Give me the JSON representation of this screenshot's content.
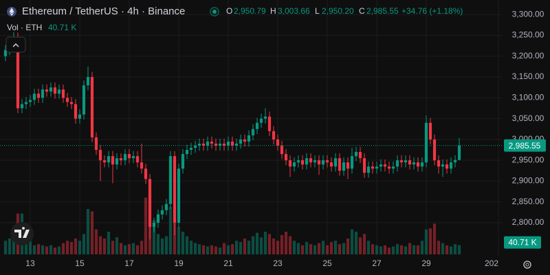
{
  "chart_data": {
    "type": "candlestick",
    "title": "Ethereum / TetherUS · 4h · Binance",
    "legend": {
      "o_label": "O",
      "open": "2,950.79",
      "h_label": "H",
      "high": "3,003.66",
      "l_label": "L",
      "low": "2,950.20",
      "c_label": "C",
      "close": "2,985.55",
      "change": "+34.76 (+1.18%)"
    },
    "up_color": "#089981",
    "down_color": "#f23645",
    "opens": [
      3200,
      3215,
      3235,
      3245,
      3075,
      3085,
      3090,
      3095,
      3110,
      3100,
      3120,
      3115,
      3125,
      3110,
      3120,
      3100,
      3090,
      3085,
      3050,
      3060,
      3130,
      3150,
      3005,
      2975,
      2950,
      2945,
      2960,
      2940,
      2955,
      2950,
      2965,
      2955,
      2960,
      2945,
      2930,
      2905,
      2790,
      2800,
      2820,
      2830,
      2845,
      2960,
      2800,
      2930,
      2965,
      2975,
      2980,
      2985,
      2990,
      2985,
      2995,
      2990,
      2985,
      2990,
      2985,
      2995,
      2985,
      2990,
      3000,
      2995,
      3010,
      3025,
      3040,
      3050,
      3055,
      3020,
      3000,
      2985,
      2965,
      2950,
      2935,
      2945,
      2950,
      2940,
      2955,
      2945,
      2950,
      2940,
      2950,
      2945,
      2935,
      2955,
      2925,
      2945,
      2930,
      2960,
      2970,
      2955,
      2920,
      2935,
      2930,
      2935,
      2940,
      2935,
      2930,
      2935,
      2950,
      2945,
      2950,
      2940,
      2945,
      2935,
      2945,
      3040,
      3000,
      2950,
      2935,
      2940,
      2930,
      2945,
      2950.79
    ],
    "highs": [
      3227,
      3247,
      3258,
      3257,
      3097,
      3102,
      3107,
      3122,
      3122,
      3132,
      3132,
      3137,
      3137,
      3132,
      3132,
      3112,
      3102,
      3097,
      3072,
      3142,
      3175,
      3162,
      3017,
      2987,
      2962,
      2972,
      2972,
      2967,
      2967,
      2977,
      2977,
      2972,
      2972,
      2990,
      2942,
      2917,
      2812,
      2832,
      2842,
      2857,
      2972,
      2972,
      2942,
      2977,
      2987,
      2992,
      2997,
      3002,
      3002,
      3007,
      3007,
      3002,
      3002,
      3002,
      3007,
      3007,
      3002,
      3012,
      3012,
      3022,
      3037,
      3052,
      3062,
      3075,
      3067,
      3032,
      3012,
      2997,
      2977,
      2962,
      2957,
      2962,
      2962,
      2967,
      2967,
      2962,
      2962,
      2962,
      2962,
      2957,
      2967,
      2967,
      2957,
      2957,
      2980,
      2982,
      2982,
      2967,
      2947,
      2947,
      2947,
      2952,
      2952,
      2947,
      2947,
      2962,
      2962,
      2962,
      2962,
      2957,
      2957,
      2957,
      3058,
      3052,
      3012,
      2962,
      2952,
      2952,
      2957,
      2962,
      3003.66
    ],
    "lows": [
      3188,
      3203,
      3223,
      3063,
      3063,
      3073,
      3078,
      3083,
      3088,
      3088,
      3103,
      3103,
      3098,
      3098,
      3088,
      3078,
      3073,
      3038,
      3038,
      3048,
      3118,
      2993,
      2963,
      2900,
      2933,
      2933,
      2895,
      2928,
      2938,
      2938,
      2943,
      2943,
      2933,
      2918,
      2893,
      2760,
      2778,
      2788,
      2808,
      2818,
      2833,
      2770,
      2788,
      2918,
      2953,
      2963,
      2968,
      2973,
      2973,
      2973,
      2978,
      2973,
      2973,
      2973,
      2973,
      2973,
      2973,
      2978,
      2983,
      2983,
      2998,
      3013,
      3028,
      3038,
      3008,
      2988,
      2973,
      2953,
      2938,
      2910,
      2923,
      2933,
      2928,
      2928,
      2933,
      2933,
      2915,
      2928,
      2933,
      2923,
      2923,
      2913,
      2913,
      2905,
      2918,
      2948,
      2943,
      2908,
      2908,
      2918,
      2918,
      2923,
      2923,
      2918,
      2918,
      2923,
      2933,
      2933,
      2928,
      2928,
      2923,
      2923,
      2933,
      2988,
      2938,
      2918,
      2910,
      2918,
      2918,
      2933,
      2950.2
    ],
    "closes": [
      3215,
      3235,
      3245,
      3075,
      3085,
      3090,
      3095,
      3110,
      3100,
      3120,
      3115,
      3125,
      3110,
      3120,
      3100,
      3090,
      3085,
      3050,
      3060,
      3130,
      3150,
      3005,
      2975,
      2950,
      2945,
      2960,
      2940,
      2955,
      2950,
      2965,
      2955,
      2960,
      2945,
      2930,
      2905,
      2790,
      2800,
      2820,
      2830,
      2845,
      2960,
      2800,
      2930,
      2965,
      2975,
      2980,
      2985,
      2990,
      2985,
      2995,
      2990,
      2985,
      2990,
      2985,
      2995,
      2985,
      2990,
      3000,
      2995,
      3010,
      3025,
      3040,
      3050,
      3055,
      3020,
      3000,
      2985,
      2965,
      2950,
      2935,
      2945,
      2950,
      2940,
      2955,
      2945,
      2950,
      2940,
      2950,
      2945,
      2935,
      2955,
      2925,
      2945,
      2930,
      2960,
      2970,
      2955,
      2920,
      2935,
      2930,
      2935,
      2940,
      2935,
      2930,
      2935,
      2950,
      2945,
      2950,
      2940,
      2945,
      2935,
      2945,
      3040,
      3000,
      2950,
      2935,
      2940,
      2930,
      2945,
      2950.79,
      2985.55
    ],
    "last_close_label": "2,985.55",
    "volume": {
      "name": "Vol · ETH",
      "last_label": "40.71 K",
      "values": [
        60,
        70,
        90,
        180,
        180,
        100,
        60,
        40,
        45,
        40,
        35,
        40,
        30,
        35,
        50,
        60,
        55,
        70,
        60,
        90,
        200,
        190,
        110,
        80,
        70,
        100,
        60,
        75,
        50,
        40,
        45,
        50,
        40,
        60,
        250,
        260,
        150,
        90,
        70,
        80,
        210,
        190,
        120,
        100,
        80,
        60,
        50,
        45,
        40,
        35,
        40,
        35,
        30,
        50,
        40,
        45,
        60,
        55,
        70,
        60,
        80,
        95,
        75,
        100,
        90,
        70,
        60,
        85,
        100,
        80,
        60,
        50,
        40,
        55,
        45,
        40,
        50,
        60,
        40,
        55,
        60,
        45,
        50,
        70,
        110,
        100,
        75,
        90,
        60,
        45,
        40,
        35,
        40,
        30,
        35,
        45,
        40,
        35,
        50,
        40,
        40,
        60,
        110,
        115,
        135,
        60,
        50,
        40,
        35,
        45,
        40.71
      ]
    },
    "xlim": [
      -1.33,
      120.33
    ],
    "xticks": [
      {
        "value": 6,
        "label": "13"
      },
      {
        "value": 18,
        "label": "15"
      },
      {
        "value": 30,
        "label": "17"
      },
      {
        "value": 42,
        "label": "19"
      },
      {
        "value": 54,
        "label": "21"
      },
      {
        "value": 66,
        "label": "23"
      },
      {
        "value": 78,
        "label": "25"
      },
      {
        "value": 90,
        "label": "27"
      },
      {
        "value": 102,
        "label": "29"
      },
      {
        "value": 119.5,
        "label": "202"
      }
    ],
    "ylim": [
      2724,
      3335
    ],
    "yticks": [
      {
        "value": 2800,
        "label": "2,800.00"
      },
      {
        "value": 2850,
        "label": "2,850.00"
      },
      {
        "value": 2900,
        "label": "2,900.00"
      },
      {
        "value": 2950,
        "label": "2,950.00"
      },
      {
        "value": 3000,
        "label": "3,000.00"
      },
      {
        "value": 3050,
        "label": "3,050.00"
      },
      {
        "value": 3100,
        "label": "3,100.00"
      },
      {
        "value": 3150,
        "label": "3,150.00"
      },
      {
        "value": 3200,
        "label": "3,200.00"
      },
      {
        "value": 3250,
        "label": "3,250.00"
      },
      {
        "value": 3300,
        "label": "3,300.00"
      }
    ],
    "grid": true
  }
}
